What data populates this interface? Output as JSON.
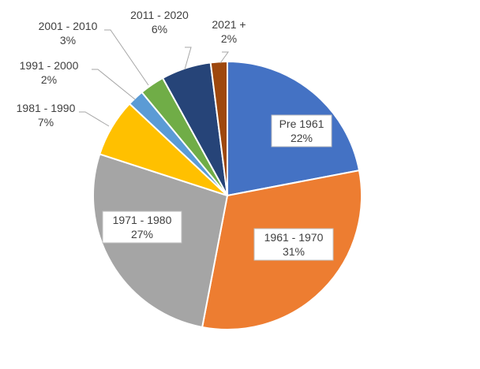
{
  "chart_data": {
    "type": "pie",
    "title": "",
    "legend": "none",
    "slices": [
      {
        "label": "Pre 1961",
        "value": 22,
        "value_label": "22%",
        "color": "#4472C4"
      },
      {
        "label": "1961 - 1970",
        "value": 31,
        "value_label": "31%",
        "color": "#ED7D31"
      },
      {
        "label": "1971 - 1980",
        "value": 27,
        "value_label": "27%",
        "color": "#A5A5A5"
      },
      {
        "label": "1981 - 1990",
        "value": 7,
        "value_label": "7%",
        "color": "#FFC000"
      },
      {
        "label": "1991 - 2000",
        "value": 2,
        "value_label": "2%",
        "color": "#5B9BD5"
      },
      {
        "label": "2001 - 2010",
        "value": 3,
        "value_label": "3%",
        "color": "#70AD47"
      },
      {
        "label": "2011 - 2020",
        "value": 6,
        "value_label": "6%",
        "color": "#264478"
      },
      {
        "label": "2021 +",
        "value": 2,
        "value_label": "2%",
        "color": "#9E480E"
      }
    ]
  }
}
